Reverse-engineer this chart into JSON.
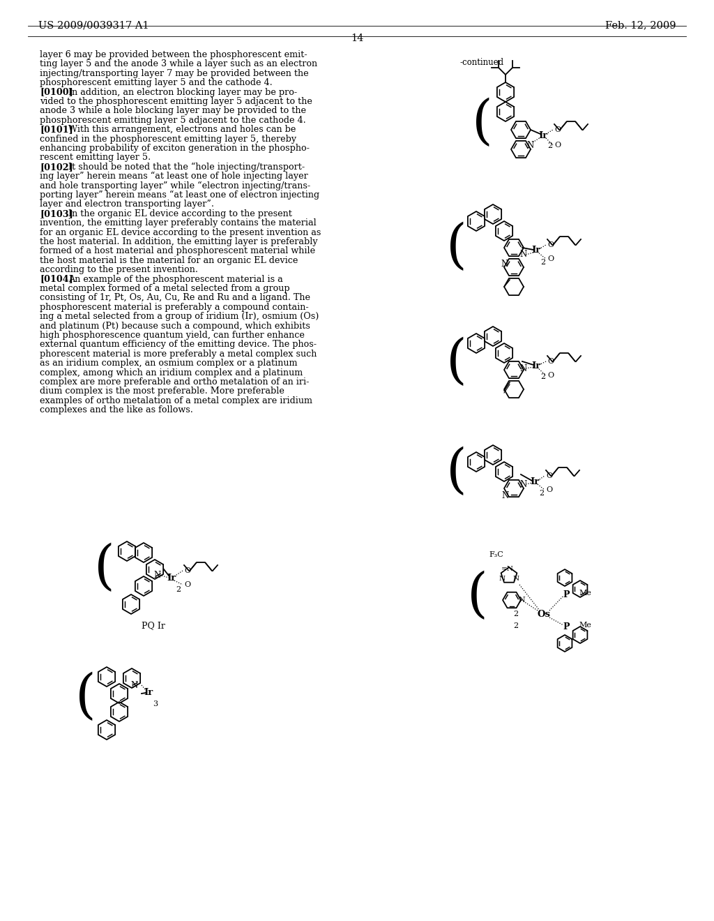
{
  "bg": "#ffffff",
  "header_left": "US 2009/0039317 A1",
  "header_right": "Feb. 12, 2009",
  "page_num": "14",
  "continued": "-continued",
  "text_lines": [
    [
      "",
      "layer 6 may be provided between the phosphorescent emit-"
    ],
    [
      "",
      "ting layer 5 and the anode 3 while a layer such as an electron"
    ],
    [
      "",
      "injecting/transporting layer 7 may be provided between the"
    ],
    [
      "",
      "phosphorescent emitting layer 5 and the cathode 4."
    ],
    [
      "[0100]",
      "In addition, an electron blocking layer may be pro-"
    ],
    [
      "",
      "vided to the phosphorescent emitting layer 5 adjacent to the"
    ],
    [
      "",
      "anode 3 while a hole blocking layer may be provided to the"
    ],
    [
      "",
      "phosphorescent emitting layer 5 adjacent to the cathode 4."
    ],
    [
      "[0101]",
      "With this arrangement, electrons and holes can be"
    ],
    [
      "",
      "confined in the phosphorescent emitting layer 5, thereby"
    ],
    [
      "",
      "enhancing probability of exciton generation in the phospho-"
    ],
    [
      "",
      "rescent emitting layer 5."
    ],
    [
      "[0102]",
      "It should be noted that the “hole injecting/transport-"
    ],
    [
      "",
      "ing layer” herein means “at least one of hole injecting layer"
    ],
    [
      "",
      "and hole transporting layer” while “electron injecting/trans-"
    ],
    [
      "",
      "porting layer” herein means “at least one of electron injecting"
    ],
    [
      "",
      "layer and electron transporting layer”."
    ],
    [
      "[0103]",
      "In the organic EL device according to the present"
    ],
    [
      "",
      "invention, the emitting layer preferably contains the material"
    ],
    [
      "",
      "for an organic EL device according to the present invention as"
    ],
    [
      "",
      "the host material. In addition, the emitting layer is preferably"
    ],
    [
      "",
      "formed of a host material and phosphorescent material while"
    ],
    [
      "",
      "the host material is the material for an organic EL device"
    ],
    [
      "",
      "according to the present invention."
    ],
    [
      "[0104]",
      "An example of the phosphorescent material is a"
    ],
    [
      "",
      "metal complex formed of a metal selected from a group"
    ],
    [
      "",
      "consisting of 1r, Pt, Os, Au, Cu, Re and Ru and a ligand. The"
    ],
    [
      "",
      "phosphorescent material is preferably a compound contain-"
    ],
    [
      "",
      "ing a metal selected from a group of iridium (Ir), osmium (Os)"
    ],
    [
      "",
      "and platinum (Pt) because such a compound, which exhibits"
    ],
    [
      "",
      "high phosphorescence quantum yield, can further enhance"
    ],
    [
      "",
      "external quantum efficiency of the emitting device. The phos-"
    ],
    [
      "",
      "phorescent material is more preferably a metal complex such"
    ],
    [
      "",
      "as an iridium complex, an osmium complex or a platinum"
    ],
    [
      "",
      "complex, among which an iridium complex and a platinum"
    ],
    [
      "",
      "complex are more preferable and ortho metalation of an iri-"
    ],
    [
      "",
      "dium complex is the most preferable. More preferable"
    ],
    [
      "",
      "examples of ortho metalation of a metal complex are iridium"
    ],
    [
      "",
      "complexes and the like as follows."
    ]
  ],
  "bold_numbers": [
    "6",
    "5",
    "3",
    "7",
    "4"
  ],
  "bold_tags": [
    "[0100]",
    "[0101]",
    "[0102]",
    "[0103]",
    "[0104]"
  ]
}
